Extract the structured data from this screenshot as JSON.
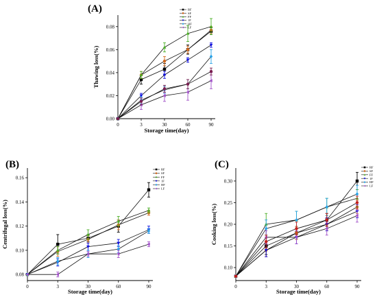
{
  "chart_data": [
    {
      "panel": "(A)",
      "type": "line",
      "xlabel": "Storage time(day)",
      "ylabel": "Thawing loss(%)",
      "categories": [
        "0",
        "3",
        "30",
        "60",
        "90"
      ],
      "ylim": [
        0,
        0.09
      ],
      "yticks": [
        "0.00",
        "0.02",
        "0.04",
        "0.06",
        "0.08"
      ],
      "legend_position": "top-right",
      "series": [
        {
          "name": "RF",
          "color": "#000000",
          "marker": "square",
          "values": [
            0,
            0.034,
            0.043,
            0.06,
            0.076
          ],
          "errors": [
            0,
            0.004,
            0.005,
            0.004,
            0.003
          ]
        },
        {
          "name": "SF",
          "color": "#d2691e",
          "marker": "circle",
          "values": [
            0,
            0.038,
            0.05,
            0.06,
            0.077
          ],
          "errors": [
            0,
            0.003,
            0.004,
            0.003,
            0.003
          ]
        },
        {
          "name": "FF",
          "color": "#4caf27",
          "marker": "triangle-up",
          "values": [
            0,
            0.038,
            0.062,
            0.074,
            0.08
          ],
          "errors": [
            0,
            0.003,
            0.004,
            0.007,
            0.007
          ]
        },
        {
          "name": "1F",
          "color": "#1010e0",
          "marker": "triangle-down",
          "values": [
            0,
            0.02,
            0.038,
            0.051,
            0.064
          ],
          "errors": [
            0,
            0.002,
            0.003,
            0.002,
            0.002
          ]
        },
        {
          "name": "HF",
          "color": "#29a3e8",
          "marker": "diamond",
          "values": [
            0,
            0.016,
            0.025,
            0.03,
            0.054
          ],
          "errors": [
            0,
            0.003,
            0.003,
            0.004,
            0.006
          ]
        },
        {
          "name": "LF",
          "color": "#a050c8",
          "marker": "triangle-left",
          "values": [
            0,
            0.012,
            0.02,
            0.023,
            0.033
          ],
          "errors": [
            0,
            0.004,
            0.005,
            0.007,
            0.007
          ]
        },
        {
          "name": "",
          "color": "#7a1f50",
          "marker": "circle",
          "values": [
            0,
            0.015,
            0.026,
            0.03,
            0.041
          ],
          "errors": [
            0,
            0.003,
            0.003,
            0.004,
            0.003
          ]
        }
      ]
    },
    {
      "panel": "(B)",
      "type": "line",
      "xlabel": "Storage time(day)",
      "ylabel": "Centrifugal loss(%)",
      "categories": [
        "0",
        "3",
        "30",
        "60",
        "90"
      ],
      "ylim": [
        0.075,
        0.168
      ],
      "yticks": [
        "0.08",
        "0.10",
        "0.12",
        "0.14",
        "0.16"
      ],
      "legend_position": "top-right",
      "series": [
        {
          "name": "RF",
          "color": "#000000",
          "marker": "square",
          "values": [
            0.08,
            0.105,
            0.11,
            0.12,
            0.15
          ],
          "errors": [
            0,
            0.008,
            0.003,
            0.005,
            0.006
          ]
        },
        {
          "name": "SF",
          "color": "#d2691e",
          "marker": "circle",
          "values": [
            0.08,
            0.099,
            0.109,
            0.121,
            0.131
          ],
          "errors": [
            0,
            0.004,
            0.003,
            0.004,
            0.002
          ]
        },
        {
          "name": "FF",
          "color": "#4caf27",
          "marker": "triangle-up",
          "values": [
            0.08,
            0.1,
            0.113,
            0.124,
            0.133
          ],
          "errors": [
            0,
            0.003,
            0.004,
            0.004,
            0.002
          ]
        },
        {
          "name": "1F",
          "color": "#1010e0",
          "marker": "triangle-down",
          "values": [
            0.08,
            0.09,
            0.103,
            0.106,
            0.117
          ],
          "errors": [
            0,
            0.003,
            0.003,
            0.003,
            0.003
          ]
        },
        {
          "name": "HF",
          "color": "#29a3e8",
          "marker": "diamond",
          "values": [
            0.08,
            0.091,
            0.097,
            0.101,
            0.116
          ],
          "errors": [
            0,
            0.003,
            0.003,
            0.003,
            0.002
          ]
        },
        {
          "name": "LF",
          "color": "#a050c8",
          "marker": "triangle-left",
          "values": [
            0.08,
            0.08,
            0.097,
            0.097,
            0.105
          ],
          "errors": [
            0,
            0.002,
            0.002,
            0.003,
            0.002
          ]
        }
      ]
    },
    {
      "panel": "(C)",
      "type": "line",
      "xlabel": "Storage time(day)",
      "ylabel": "Cooking loss(%)",
      "categories": [
        "0",
        "3",
        "30",
        "60",
        "90"
      ],
      "ylim": [
        0.07,
        0.33
      ],
      "yticks": [
        "0.10",
        "0.15",
        "0.20",
        "0.25",
        "0.30"
      ],
      "legend_position": "top-right",
      "series": [
        {
          "name": "RF",
          "color": "#000000",
          "marker": "square",
          "values": [
            0.08,
            0.15,
            0.18,
            0.21,
            0.3
          ],
          "errors": [
            0,
            0.02,
            0.015,
            0.015,
            0.02
          ]
        },
        {
          "name": "SF",
          "color": "#d2691e",
          "marker": "circle",
          "values": [
            0.08,
            0.14,
            0.18,
            0.2,
            0.24
          ],
          "errors": [
            0,
            0.015,
            0.015,
            0.015,
            0.015
          ]
        },
        {
          "name": "FF",
          "color": "#4caf27",
          "marker": "triangle-up",
          "values": [
            0.08,
            0.2,
            0.21,
            0.24,
            0.26
          ],
          "errors": [
            0,
            0.025,
            0.02,
            0.02,
            0.02
          ]
        },
        {
          "name": "1F",
          "color": "#1010e0",
          "marker": "triangle-down",
          "values": [
            0.08,
            0.14,
            0.17,
            0.2,
            0.23
          ],
          "errors": [
            0,
            0.015,
            0.015,
            0.015,
            0.015
          ]
        },
        {
          "name": "HF",
          "color": "#29a3e8",
          "marker": "diamond",
          "values": [
            0.08,
            0.19,
            0.21,
            0.24,
            0.27
          ],
          "errors": [
            0,
            0.02,
            0.02,
            0.02,
            0.02
          ]
        },
        {
          "name": "LF",
          "color": "#a050c8",
          "marker": "triangle-left",
          "values": [
            0.08,
            0.17,
            0.17,
            0.19,
            0.22
          ],
          "errors": [
            0,
            0.015,
            0.015,
            0.015,
            0.015
          ]
        },
        {
          "name": "",
          "color": "#c21d1d",
          "marker": "circle",
          "values": [
            0.08,
            0.16,
            0.19,
            0.21,
            0.25
          ],
          "errors": [
            0,
            0.015,
            0.015,
            0.015,
            0.015
          ]
        }
      ]
    }
  ]
}
